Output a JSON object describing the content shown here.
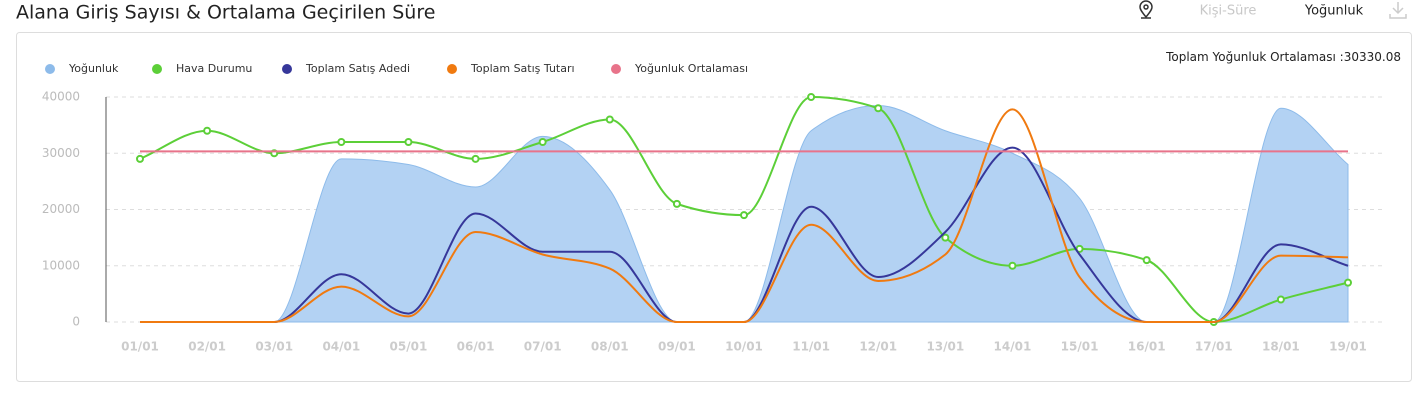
{
  "header": {
    "title": "Alana Giriş Sayısı & Ortalama Geçirilen Süre",
    "buttons": [
      "Kişi-Süre",
      "Yoğunluk"
    ]
  },
  "chart_data": {
    "type": "line",
    "annotation": {
      "text": "Toplam Yoğunluk Ortalaması :",
      "value": 30330.08
    },
    "categories": [
      "01/01",
      "02/01",
      "03/01",
      "04/01",
      "05/01",
      "06/01",
      "07/01",
      "08/01",
      "09/01",
      "10/01",
      "11/01",
      "12/01",
      "13/01",
      "14/01",
      "15/01",
      "16/01",
      "17/01",
      "18/01",
      "19/01"
    ],
    "series": [
      {
        "name": "Yoğunluk",
        "color": "#8dbbea",
        "kind": "area",
        "values": [
          0,
          0,
          0,
          29000,
          28000,
          24000,
          33000,
          23500,
          0,
          0,
          34000,
          38500,
          34000,
          30000,
          22000,
          0,
          0,
          38000,
          28000
        ]
      },
      {
        "name": "Hava Durumu",
        "color": "#5ccf38",
        "kind": "line",
        "markers": true,
        "values": [
          29000,
          34000,
          30000,
          32000,
          32000,
          29000,
          32000,
          36000,
          21000,
          19000,
          40000,
          38000,
          15000,
          10000,
          13000,
          11000,
          0,
          4000,
          7000
        ]
      },
      {
        "name": "Toplam Satış Adedi",
        "color": "#36379a",
        "kind": "line",
        "values": [
          0,
          0,
          0,
          8500,
          1500,
          19300,
          12500,
          12500,
          0,
          0,
          20500,
          8000,
          16000,
          31000,
          12000,
          0,
          0,
          13800,
          10000
        ]
      },
      {
        "name": "Toplam Satış Tutarı",
        "color": "#f07a10",
        "kind": "line",
        "values": [
          0,
          0,
          0,
          6300,
          1000,
          16000,
          12000,
          9500,
          0,
          0,
          17300,
          7300,
          12000,
          37800,
          8000,
          0,
          0,
          11800,
          11500
        ]
      },
      {
        "name": "Yoğunluk Ortalaması",
        "color": "#e8738a",
        "kind": "average",
        "value": 30330.08
      }
    ],
    "ylim": [
      0,
      40000
    ],
    "yticks": [
      0,
      10000,
      20000,
      30000,
      40000
    ],
    "grid": true
  }
}
